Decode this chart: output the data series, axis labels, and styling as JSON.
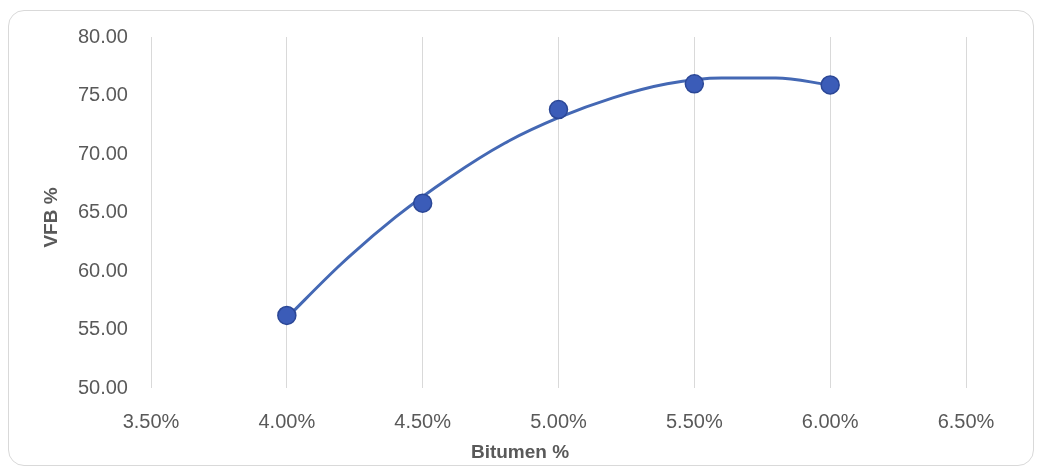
{
  "chart_data": {
    "type": "scatter",
    "xlabel": "Bitumen %",
    "ylabel": "VFB %",
    "marker": "circle",
    "grid": "x",
    "series": [
      {
        "color": "#3b5cb8",
        "x": [
          4.0,
          4.5,
          5.0,
          5.5,
          6.0
        ],
        "values": [
          56.2,
          65.8,
          73.8,
          76.0,
          75.9
        ]
      },
      {
        "type": "line",
        "color": "#4468b4",
        "marker": "none",
        "x": [
          4.0,
          4.2,
          4.4,
          4.6,
          4.8,
          5.0,
          5.2,
          5.4,
          5.6,
          5.8,
          6.0
        ],
        "values": [
          56.0,
          60.6,
          64.6,
          68.0,
          70.9,
          73.1,
          74.8,
          76.0,
          76.5,
          76.5,
          75.9
        ]
      }
    ],
    "xlim": [
      3.5,
      6.5
    ],
    "xticks": [
      {
        "value": 3.5,
        "label": "3.50%"
      },
      {
        "value": 4.0,
        "label": "4.00%"
      },
      {
        "value": 4.5,
        "label": "4.50%"
      },
      {
        "value": 5.0,
        "label": "5.00%"
      },
      {
        "value": 5.5,
        "label": "5.50%"
      },
      {
        "value": 6.0,
        "label": "6.00%"
      },
      {
        "value": 6.5,
        "label": "6.50%"
      }
    ],
    "ylim": [
      50,
      80
    ],
    "yticks": [
      {
        "value": 50,
        "label": "50.00"
      },
      {
        "value": 55,
        "label": "55.00"
      },
      {
        "value": 60,
        "label": "60.00"
      },
      {
        "value": 65,
        "label": "65.00"
      },
      {
        "value": 70,
        "label": "70.00"
      },
      {
        "value": 75,
        "label": "75.00"
      },
      {
        "value": 80,
        "label": "80.00"
      }
    ]
  }
}
